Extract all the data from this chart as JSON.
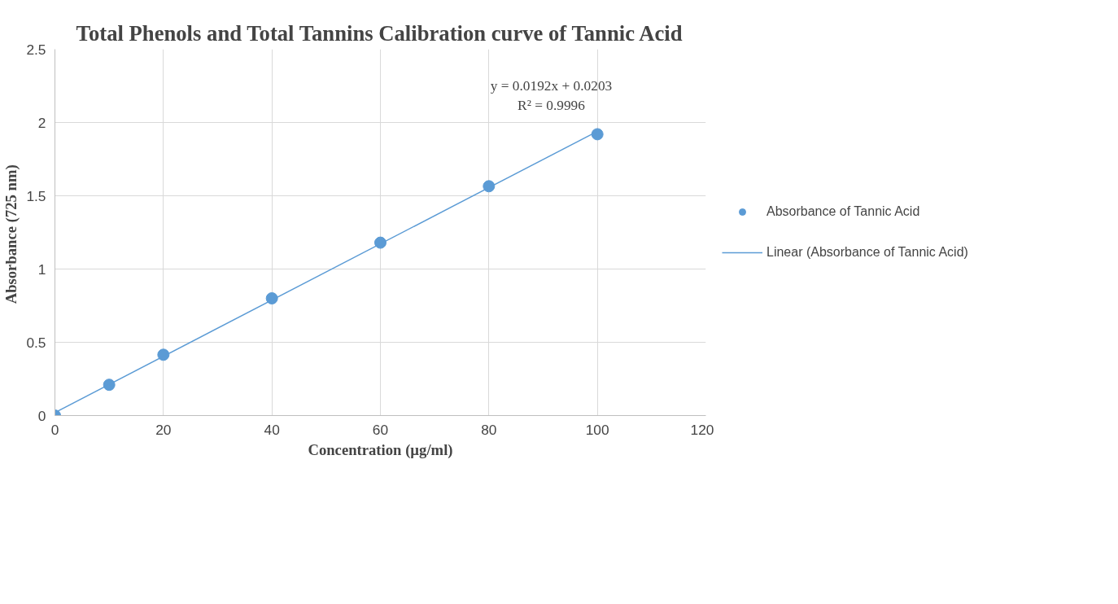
{
  "chart_data": {
    "type": "scatter",
    "title": "Total Phenols and Total Tannins Calibration curve of Tannic Acid",
    "xlabel": "Concentration (µg/ml)",
    "ylabel": "Absorbance  (725 nm)",
    "series": [
      {
        "name": "Absorbance of Tannic Acid",
        "color": "#5b9bd5",
        "x": [
          0,
          10,
          20,
          40,
          60,
          80,
          100
        ],
        "values": [
          0,
          0.21,
          0.415,
          0.8,
          1.18,
          1.565,
          1.92
        ],
        "marker": "circle"
      },
      {
        "name": "Linear (Absorbance of Tannic Acid)",
        "type": "line",
        "color": "#5b9bd5",
        "x": [
          0,
          100
        ],
        "values": [
          0.02,
          1.94
        ],
        "marker": "none",
        "line_style": "solid"
      }
    ],
    "xlim": [
      0,
      120
    ],
    "xticks": [
      0,
      20,
      40,
      60,
      80,
      100,
      120
    ],
    "ylim": [
      0,
      2.5
    ],
    "yticks": [
      0,
      0.5,
      1,
      1.5,
      2,
      2.5
    ],
    "grid": true,
    "legend": "right",
    "annotations": [
      "y = 0.0192x + 0.0203",
      "R² = 0.9996"
    ]
  }
}
